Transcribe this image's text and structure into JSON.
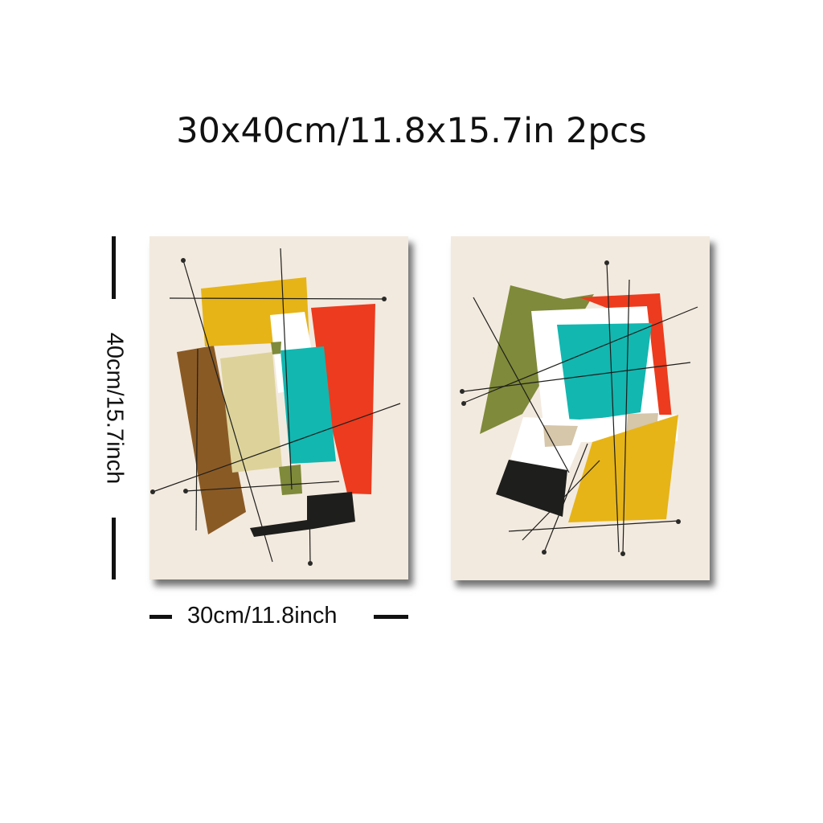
{
  "title": "30x40cm/11.8x15.7in 2pcs",
  "dimensions": {
    "height_label": "40cm/15.7inch",
    "width_label": "30cm/11.8inch"
  },
  "colors": {
    "canvas": "#f3eadf",
    "mustard": "#e6b417",
    "red": "#ec3b1e",
    "teal": "#12b7b0",
    "brown": "#8a5a25",
    "khaki": "#ddd39a",
    "olive": "#7f8a3a",
    "black": "#1e1e1c",
    "beige": "#d6c6aa"
  }
}
